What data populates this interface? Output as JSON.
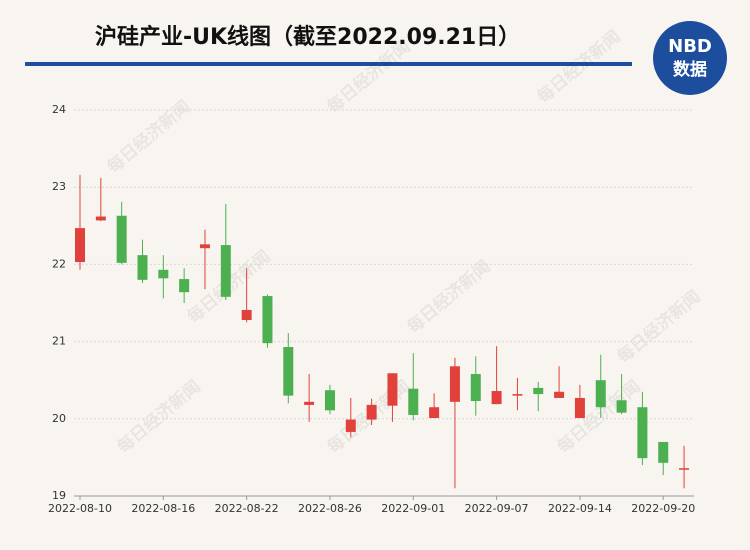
{
  "chart_data": {
    "type": "candlestick",
    "title": "沪硅产业-UK线图（截至2022.09.21日）",
    "logo": {
      "top": "NBD",
      "bottom": "数据"
    },
    "watermark": "每日经济新闻",
    "categories": [
      "2022-08-10",
      null,
      null,
      null,
      "2022-08-16",
      null,
      null,
      null,
      "2022-08-22",
      null,
      null,
      null,
      "2022-08-26",
      null,
      null,
      null,
      "2022-09-01",
      null,
      null,
      null,
      "2022-09-07",
      null,
      null,
      null,
      "2022-09-14",
      null,
      null,
      null,
      "2022-09-20",
      null
    ],
    "open": [
      22.03,
      22.57,
      22.63,
      22.12,
      21.93,
      21.81,
      22.21,
      22.25,
      21.28,
      21.59,
      20.93,
      20.18,
      20.37,
      19.83,
      19.99,
      20.17,
      20.39,
      20.01,
      20.22,
      20.58,
      20.19,
      20.3,
      20.4,
      20.27,
      20.01,
      20.5,
      20.24,
      20.15,
      19.7,
      19.34
    ],
    "high": [
      23.16,
      23.12,
      22.81,
      22.32,
      22.12,
      21.95,
      22.45,
      22.78,
      21.95,
      21.61,
      21.11,
      20.58,
      20.44,
      20.27,
      20.26,
      20.59,
      20.85,
      20.33,
      20.79,
      20.81,
      20.94,
      20.53,
      20.48,
      20.68,
      20.44,
      20.83,
      20.58,
      20.35,
      19.7,
      19.65
    ],
    "low": [
      21.93,
      22.56,
      22.0,
      21.76,
      21.56,
      21.5,
      21.68,
      21.54,
      21.25,
      20.92,
      20.2,
      19.96,
      20.06,
      19.76,
      19.92,
      19.96,
      19.98,
      20.01,
      19.1,
      20.04,
      20.19,
      20.11,
      20.1,
      20.27,
      20.01,
      20.01,
      20.06,
      19.4,
      19.27,
      19.1
    ],
    "close": [
      22.47,
      22.62,
      22.02,
      21.8,
      21.82,
      21.64,
      22.26,
      21.58,
      21.41,
      20.98,
      20.3,
      20.22,
      20.11,
      19.99,
      20.18,
      20.59,
      20.05,
      20.15,
      20.68,
      20.23,
      20.36,
      20.32,
      20.32,
      20.35,
      20.27,
      20.15,
      20.08,
      19.49,
      19.43,
      19.36
    ],
    "up_color": "#e0423b",
    "down_color": "#4caf50",
    "ylim": [
      19,
      24
    ],
    "yticks": [
      19,
      20,
      21,
      22,
      23,
      24
    ],
    "grid": true
  }
}
